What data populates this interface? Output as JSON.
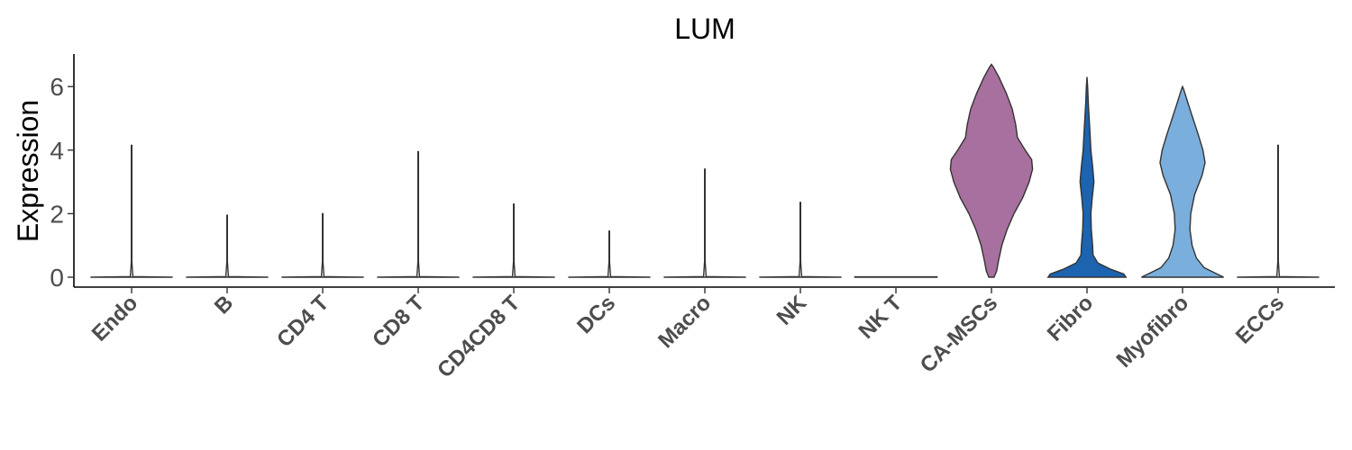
{
  "chart_data": {
    "type": "violin",
    "title": "LUM",
    "ylabel": "Expression",
    "xlabel": "",
    "ylim": [
      0,
      7
    ],
    "yticks": [
      0,
      2,
      4,
      6
    ],
    "grid": false,
    "legend": "none",
    "categories": [
      "Endo",
      "B",
      "CD4 T",
      "CD8 T",
      "CD4CD8 T",
      "DCs",
      "Macro",
      "NK",
      "NK T",
      "CA-MSCs",
      "Fibro",
      "Myofibro",
      "ECCs"
    ],
    "violins": [
      {
        "category": "Endo",
        "color": "#ffffff",
        "max": 4.15,
        "profile": [
          [
            0,
            0.95
          ],
          [
            0.02,
            0.03
          ],
          [
            0.5,
            0.006
          ],
          [
            4.15,
            0.006
          ]
        ]
      },
      {
        "category": "B",
        "color": "#ffffff",
        "max": 1.95,
        "profile": [
          [
            0,
            0.95
          ],
          [
            0.02,
            0.03
          ],
          [
            0.5,
            0.006
          ],
          [
            1.95,
            0.006
          ]
        ]
      },
      {
        "category": "CD4 T",
        "color": "#ffffff",
        "max": 2.0,
        "profile": [
          [
            0,
            0.95
          ],
          [
            0.02,
            0.03
          ],
          [
            0.5,
            0.006
          ],
          [
            2.0,
            0.006
          ]
        ]
      },
      {
        "category": "CD8 T",
        "color": "#ffffff",
        "max": 3.95,
        "profile": [
          [
            0,
            0.95
          ],
          [
            0.02,
            0.03
          ],
          [
            0.5,
            0.006
          ],
          [
            3.95,
            0.006
          ]
        ]
      },
      {
        "category": "CD4CD8 T",
        "color": "#ffffff",
        "max": 2.3,
        "profile": [
          [
            0,
            0.95
          ],
          [
            0.02,
            0.03
          ],
          [
            0.5,
            0.006
          ],
          [
            2.3,
            0.006
          ]
        ]
      },
      {
        "category": "DCs",
        "color": "#ffffff",
        "max": 1.45,
        "profile": [
          [
            0,
            0.95
          ],
          [
            0.02,
            0.03
          ],
          [
            0.5,
            0.006
          ],
          [
            1.45,
            0.006
          ]
        ]
      },
      {
        "category": "Macro",
        "color": "#ffffff",
        "max": 3.4,
        "profile": [
          [
            0,
            0.95
          ],
          [
            0.02,
            0.03
          ],
          [
            0.5,
            0.006
          ],
          [
            3.4,
            0.006
          ]
        ]
      },
      {
        "category": "NK",
        "color": "#ffffff",
        "max": 2.35,
        "profile": [
          [
            0,
            0.95
          ],
          [
            0.02,
            0.03
          ],
          [
            0.5,
            0.006
          ],
          [
            2.35,
            0.006
          ]
        ]
      },
      {
        "category": "NK T",
        "color": "#ffffff",
        "max": 0,
        "profile": [
          [
            0,
            0.95
          ],
          [
            0.01,
            0.95
          ]
        ]
      },
      {
        "category": "CA-MSCs",
        "color": "#a8709e",
        "max": 6.7,
        "profile": [
          [
            0,
            0.06
          ],
          [
            0.2,
            0.12
          ],
          [
            0.5,
            0.16
          ],
          [
            1.0,
            0.24
          ],
          [
            1.5,
            0.36
          ],
          [
            2.0,
            0.52
          ],
          [
            2.5,
            0.72
          ],
          [
            3.0,
            0.87
          ],
          [
            3.4,
            0.95
          ],
          [
            3.7,
            0.93
          ],
          [
            4.0,
            0.78
          ],
          [
            4.4,
            0.6
          ],
          [
            4.8,
            0.56
          ],
          [
            5.3,
            0.48
          ],
          [
            5.8,
            0.34
          ],
          [
            6.3,
            0.17
          ],
          [
            6.6,
            0.05
          ],
          [
            6.7,
            0.0
          ]
        ]
      },
      {
        "category": "Fibro",
        "color": "#1c63b0",
        "max": 6.3,
        "profile": [
          [
            0,
            0.9
          ],
          [
            0.1,
            0.85
          ],
          [
            0.25,
            0.55
          ],
          [
            0.45,
            0.25
          ],
          [
            0.7,
            0.14
          ],
          [
            1.0,
            0.13
          ],
          [
            1.5,
            0.1
          ],
          [
            2.0,
            0.09
          ],
          [
            2.5,
            0.12
          ],
          [
            3.0,
            0.16
          ],
          [
            3.5,
            0.13
          ],
          [
            4.0,
            0.09
          ],
          [
            4.5,
            0.07
          ],
          [
            5.0,
            0.05
          ],
          [
            5.5,
            0.03
          ],
          [
            6.0,
            0.015
          ],
          [
            6.3,
            0.0
          ]
        ]
      },
      {
        "category": "Myofibro",
        "color": "#7aaedc",
        "max": 6.0,
        "profile": [
          [
            0,
            0.95
          ],
          [
            0.1,
            0.8
          ],
          [
            0.3,
            0.5
          ],
          [
            0.6,
            0.32
          ],
          [
            1.0,
            0.22
          ],
          [
            1.5,
            0.17
          ],
          [
            2.0,
            0.19
          ],
          [
            2.6,
            0.28
          ],
          [
            3.2,
            0.45
          ],
          [
            3.6,
            0.52
          ],
          [
            4.0,
            0.47
          ],
          [
            4.5,
            0.36
          ],
          [
            5.0,
            0.24
          ],
          [
            5.5,
            0.12
          ],
          [
            5.9,
            0.03
          ],
          [
            6.0,
            0.0
          ]
        ]
      },
      {
        "category": "ECCs",
        "color": "#ffffff",
        "max": 4.15,
        "profile": [
          [
            0,
            0.95
          ],
          [
            0.02,
            0.03
          ],
          [
            0.5,
            0.006
          ],
          [
            4.15,
            0.006
          ]
        ]
      }
    ]
  }
}
